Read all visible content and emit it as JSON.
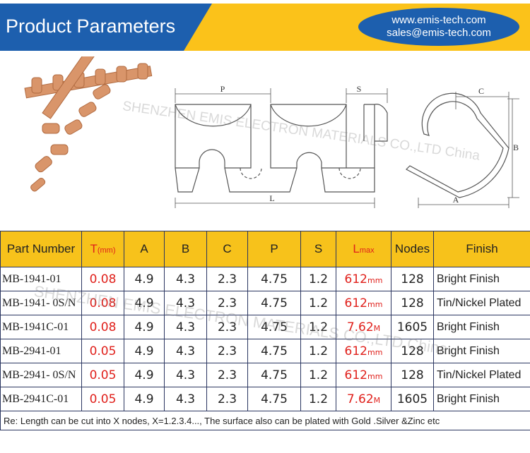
{
  "header": {
    "title": "Product Parameters",
    "website": "www.emis-tech.com",
    "email": "sales@emis-tech.com"
  },
  "watermark": "SHENZHEN EMIS ELECTRON MATERIALS CO.,LTD China",
  "dimension_labels": {
    "P": "P",
    "S": "S",
    "L": "L",
    "C": "C",
    "B": "B",
    "A": "A"
  },
  "table": {
    "columns": [
      {
        "text": "Part Number"
      },
      {
        "text": "T",
        "unit": "(mm)"
      },
      {
        "text": "A"
      },
      {
        "text": "B"
      },
      {
        "text": "C"
      },
      {
        "text": "P"
      },
      {
        "text": "S"
      },
      {
        "text": "L",
        "unit": "max"
      },
      {
        "text": "Nodes"
      },
      {
        "text": "Finish"
      }
    ],
    "rows": [
      [
        "MB-1941-01",
        "0.08",
        "4.9",
        "4.3",
        "2.3",
        "4.75",
        "1.2",
        {
          "text": "612",
          "unit": "mm"
        },
        "128",
        "Bright Finish"
      ],
      [
        "MB-1941- 0S/N",
        "0.08",
        "4.9",
        "4.3",
        "2.3",
        "4.75",
        "1.2",
        {
          "text": "612",
          "unit": "mm"
        },
        "128",
        "Tin/Nickel Plated"
      ],
      [
        "MB-1941C-01",
        "0.08",
        "4.9",
        "4.3",
        "2.3",
        "4.75",
        "1.2",
        {
          "text": "7.62",
          "unit": "M"
        },
        "1605",
        "Bright Finish"
      ],
      [
        "MB-2941-01",
        "0.05",
        "4.9",
        "4.3",
        "2.3",
        "4.75",
        "1.2",
        {
          "text": "612",
          "unit": "mm"
        },
        "128",
        "Bright Finish"
      ],
      [
        "MB-2941- 0S/N",
        "0.05",
        "4.9",
        "4.3",
        "2.3",
        "4.75",
        "1.2",
        {
          "text": "612",
          "unit": "mm"
        },
        "128",
        "Tin/Nickel Plated"
      ],
      [
        "MB-2941C-01",
        "0.05",
        "4.9",
        "4.3",
        "2.3",
        "4.75",
        "1.2",
        {
          "text": "7.62",
          "unit": "M"
        },
        "1605",
        "Bright Finish"
      ]
    ],
    "note": "Re: Length can be cut into X  nodes, X=1.2.3.4..., The surface also can be plated with Gold .Silver &Zinc etc"
  }
}
